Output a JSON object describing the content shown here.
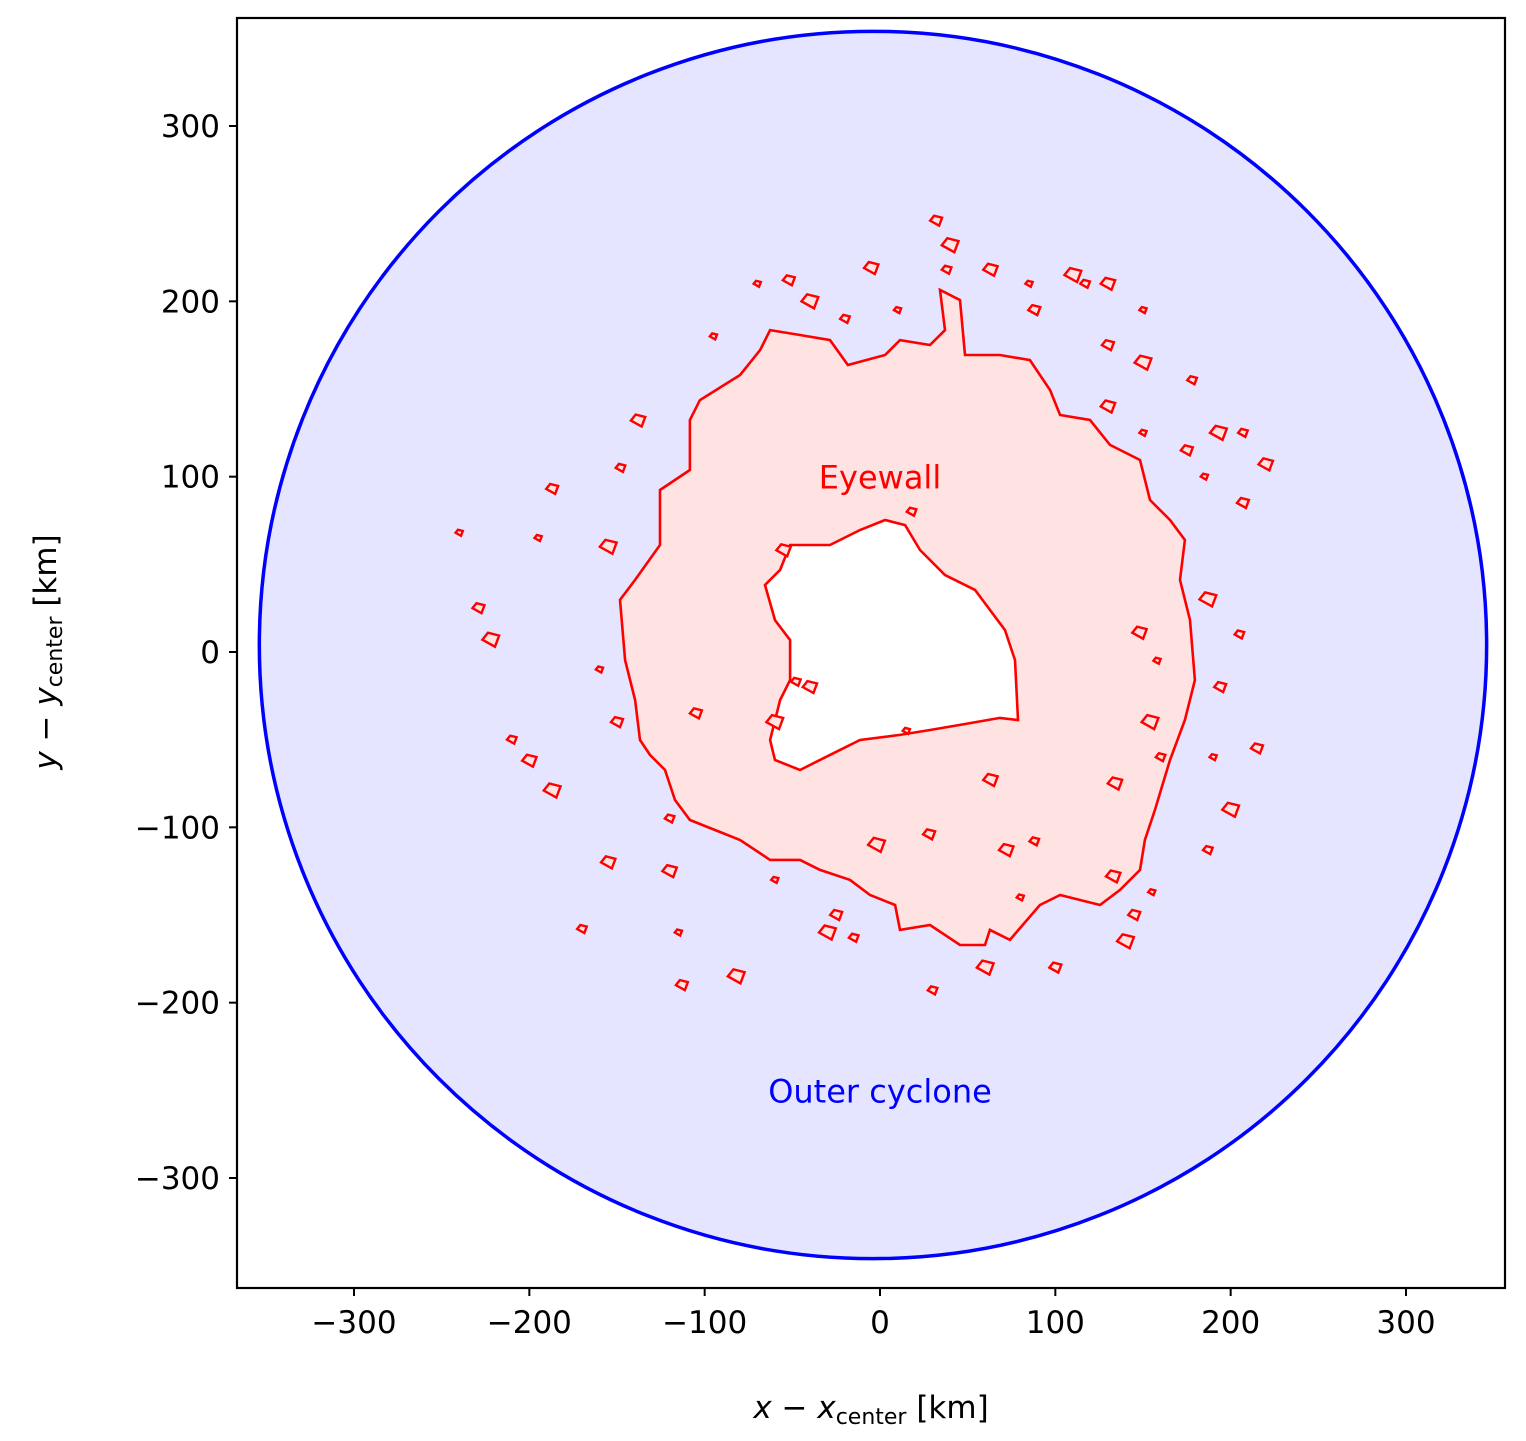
{
  "chart_data": {
    "type": "area",
    "title": "",
    "xlabel": {
      "main": "x − x",
      "sub": "center",
      "unit": " [km]"
    },
    "ylabel": {
      "main": "y − y",
      "sub": "center",
      "unit": " [km]"
    },
    "xlim": [
      -366,
      356
    ],
    "ylim": [
      -363,
      362
    ],
    "xticks": [
      -300,
      -200,
      -100,
      0,
      100,
      200,
      300
    ],
    "yticks": [
      -300,
      -200,
      -100,
      0,
      100,
      200,
      300
    ],
    "xtick_labels": [
      "−300",
      "−200",
      "−100",
      "0",
      "100",
      "200",
      "300"
    ],
    "ytick_labels": [
      "−300",
      "−200",
      "−100",
      "0",
      "100",
      "200",
      "300"
    ],
    "grid": false,
    "colors": {
      "outer": "#0000ff",
      "outer_fill": "#e5e5ff",
      "eyewall": "#ff0000",
      "eyewall_fill": "#ffe3e3"
    },
    "outer_cyclone": {
      "label": "Outer cyclone",
      "label_at": [
        0,
        -250
      ],
      "center": [
        -4,
        4
      ],
      "radius": 350
    },
    "eyewall": {
      "label": "Eyewall",
      "label_at": [
        0,
        100
      ],
      "outer_boundary": [
        [
          -62.7,
          183.6
        ],
        [
          -45.6,
          180.8
        ],
        [
          -28.5,
          177.9
        ],
        [
          -18.3,
          163.7
        ],
        [
          2.9,
          169.4
        ],
        [
          11.4,
          177.9
        ],
        [
          28.5,
          175.1
        ],
        [
          37.1,
          183.6
        ],
        [
          34.2,
          206.5
        ],
        [
          45.6,
          200.7
        ],
        [
          48.5,
          169.4
        ],
        [
          68.4,
          169.4
        ],
        [
          85.5,
          166.5
        ],
        [
          97.0,
          149.4
        ],
        [
          102.7,
          135.2
        ],
        [
          119.8,
          132.3
        ],
        [
          131.2,
          118.1
        ],
        [
          148.3,
          109.5
        ],
        [
          154.0,
          86.7
        ],
        [
          165.4,
          75.3
        ],
        [
          173.9,
          63.9
        ],
        [
          171.1,
          41.1
        ],
        [
          176.8,
          18.2
        ],
        [
          179.6,
          -16.0
        ],
        [
          173.9,
          -38.8
        ],
        [
          165.4,
          -61.6
        ],
        [
          156.8,
          -90.1
        ],
        [
          151.1,
          -107.2
        ],
        [
          148.3,
          -124.3
        ],
        [
          136.9,
          -135.7
        ],
        [
          125.5,
          -144.3
        ],
        [
          102.7,
          -138.6
        ],
        [
          91.2,
          -144.3
        ],
        [
          74.1,
          -164.2
        ],
        [
          62.7,
          -158.5
        ],
        [
          59.9,
          -167.1
        ],
        [
          45.6,
          -167.1
        ],
        [
          28.5,
          -155.7
        ],
        [
          11.4,
          -158.5
        ],
        [
          8.6,
          -144.3
        ],
        [
          -5.7,
          -138.6
        ],
        [
          -17.1,
          -130.0
        ],
        [
          -34.2,
          -124.3
        ],
        [
          -45.6,
          -118.6
        ],
        [
          -62.7,
          -118.6
        ],
        [
          -79.8,
          -107.2
        ],
        [
          -94.1,
          -101.5
        ],
        [
          -108.4,
          -95.8
        ],
        [
          -116.9,
          -84.4
        ],
        [
          -122.6,
          -67.3
        ],
        [
          -131.2,
          -58.7
        ],
        [
          -136.9,
          -50.2
        ],
        [
          -139.7,
          -27.4
        ],
        [
          -145.4,
          -4.6
        ],
        [
          -148.3,
          29.7
        ],
        [
          -139.7,
          41.1
        ],
        [
          -125.5,
          61.0
        ],
        [
          -125.5,
          92.4
        ],
        [
          -108.4,
          103.8
        ],
        [
          -108.4,
          132.3
        ],
        [
          -102.7,
          143.7
        ],
        [
          -79.8,
          158.0
        ],
        [
          -68.4,
          172.2
        ]
      ],
      "inner_boundary": [
        [
          -51.3,
          61.0
        ],
        [
          -28.5,
          61.0
        ],
        [
          -11.4,
          69.6
        ],
        [
          2.9,
          75.3
        ],
        [
          14.3,
          72.4
        ],
        [
          22.8,
          58.2
        ],
        [
          37.1,
          43.9
        ],
        [
          54.2,
          35.4
        ],
        [
          62.7,
          24.0
        ],
        [
          71.3,
          12.5
        ],
        [
          77.0,
          -4.6
        ],
        [
          78.7,
          -38.8
        ],
        [
          68.4,
          -37.6
        ],
        [
          45.6,
          -41.6
        ],
        [
          28.5,
          -44.5
        ],
        [
          11.4,
          -47.3
        ],
        [
          -11.4,
          -50.2
        ],
        [
          -28.5,
          -58.7
        ],
        [
          -45.6,
          -67.3
        ],
        [
          -59.9,
          -61.6
        ],
        [
          -62.7,
          -50.2
        ],
        [
          -57.0,
          -27.4
        ],
        [
          -51.3,
          -16.0
        ],
        [
          -51.3,
          6.8
        ],
        [
          -59.9,
          18.2
        ],
        [
          -65.6,
          38.2
        ],
        [
          -57.0,
          46.8
        ]
      ],
      "patches": [
        [
          -240,
          68
        ],
        [
          -229,
          25
        ],
        [
          -222,
          7
        ],
        [
          -210,
          -50
        ],
        [
          -200,
          -62
        ],
        [
          -195,
          65
        ],
        [
          -187,
          93
        ],
        [
          -187,
          -79
        ],
        [
          -170,
          -158
        ],
        [
          -155,
          -120
        ],
        [
          -160,
          -10
        ],
        [
          -150,
          -40
        ],
        [
          -155,
          60
        ],
        [
          -148,
          105
        ],
        [
          -138,
          132
        ],
        [
          -115,
          -160
        ],
        [
          -113,
          -190
        ],
        [
          -82,
          -185
        ],
        [
          -120,
          -95
        ],
        [
          -120,
          -125
        ],
        [
          -95,
          180
        ],
        [
          -105,
          -35
        ],
        [
          -60,
          -40
        ],
        [
          -48,
          -17
        ],
        [
          -40,
          -20
        ],
        [
          -60,
          -130
        ],
        [
          -25,
          -150
        ],
        [
          -30,
          -160
        ],
        [
          -15,
          -163
        ],
        [
          -55,
          58
        ],
        [
          -70,
          210
        ],
        [
          -52,
          212
        ],
        [
          -40,
          200
        ],
        [
          -20,
          190
        ],
        [
          -5,
          219
        ],
        [
          10,
          195
        ],
        [
          32,
          246
        ],
        [
          40,
          232
        ],
        [
          38,
          218
        ],
        [
          63,
          218
        ],
        [
          85,
          210
        ],
        [
          88,
          195
        ],
        [
          110,
          215
        ],
        [
          117,
          210
        ],
        [
          130,
          210
        ],
        [
          150,
          195
        ],
        [
          130,
          175
        ],
        [
          150,
          165
        ],
        [
          178,
          155
        ],
        [
          130,
          140
        ],
        [
          150,
          125
        ],
        [
          175,
          115
        ],
        [
          193,
          125
        ],
        [
          207,
          125
        ],
        [
          220,
          107
        ],
        [
          185,
          100
        ],
        [
          207,
          85
        ],
        [
          187,
          30
        ],
        [
          205,
          10
        ],
        [
          148,
          11
        ],
        [
          158,
          -5
        ],
        [
          194,
          -20
        ],
        [
          154,
          -40
        ],
        [
          160,
          -60
        ],
        [
          134,
          -75
        ],
        [
          190,
          -60
        ],
        [
          215,
          -55
        ],
        [
          200,
          -90
        ],
        [
          187,
          -113
        ],
        [
          133,
          -128
        ],
        [
          155,
          -137
        ],
        [
          145,
          -150
        ],
        [
          140,
          -165
        ],
        [
          88,
          -108
        ],
        [
          72,
          -113
        ],
        [
          80,
          -140
        ],
        [
          100,
          -180
        ],
        [
          60,
          -180
        ],
        [
          30,
          -193
        ],
        [
          63,
          -73
        ],
        [
          15,
          -45
        ],
        [
          28,
          -104
        ],
        [
          -2,
          -110
        ],
        [
          18,
          80
        ]
      ]
    }
  }
}
